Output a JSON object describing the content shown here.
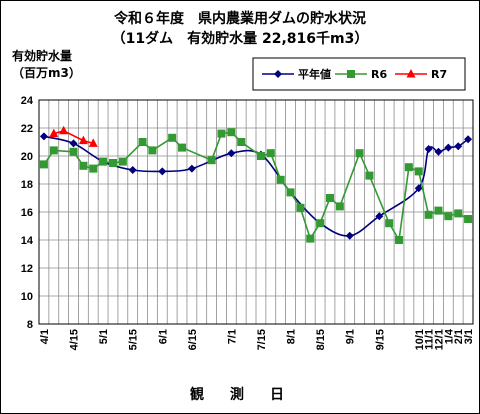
{
  "chart_data": {
    "type": "line",
    "title": "令和６年度　県内農業用ダムの貯水状況",
    "subtitle": "（11ダム　有効貯水量 22,816千m3）",
    "ylabel_line1": "有効貯水量",
    "ylabel_line2": "（百万m3）",
    "xlabel": "観　測　日",
    "ylim": [
      8,
      24
    ],
    "yticks": [
      8,
      10,
      12,
      14,
      16,
      18,
      20,
      22,
      24
    ],
    "grid": true,
    "legend_position": "top-right",
    "x_tick_labels": [
      "4/1",
      "4/15",
      "5/1",
      "5/15",
      "6/1",
      "6/15",
      "7/1",
      "7/15",
      "8/1",
      "8/15",
      "9/1",
      "9/15",
      "10/1",
      "11/1",
      "12/1",
      "1/4",
      "2/1",
      "3/1"
    ],
    "series": [
      {
        "name": "平年値",
        "color": "#00007f",
        "marker": "diamond",
        "points": [
          [
            0,
            21.4
          ],
          [
            3,
            20.9
          ],
          [
            6,
            19.6
          ],
          [
            9,
            19.0
          ],
          [
            12,
            18.9
          ],
          [
            15,
            19.1
          ],
          [
            19,
            20.2
          ],
          [
            22,
            20.1
          ],
          [
            25,
            17.4
          ],
          [
            28,
            15.2
          ],
          [
            31,
            14.3
          ],
          [
            34,
            15.7
          ],
          [
            38,
            17.7
          ],
          [
            39,
            20.5
          ],
          [
            40,
            20.3
          ],
          [
            41,
            20.6
          ],
          [
            42,
            20.7
          ],
          [
            43,
            21.2
          ]
        ]
      },
      {
        "name": "R6",
        "color": "#339933",
        "marker": "square",
        "points": [
          [
            0,
            19.4
          ],
          [
            1,
            20.4
          ],
          [
            3,
            20.3
          ],
          [
            4,
            19.3
          ],
          [
            5,
            19.1
          ],
          [
            6,
            19.6
          ],
          [
            7,
            19.5
          ],
          [
            8,
            19.6
          ],
          [
            10,
            21.0
          ],
          [
            11,
            20.4
          ],
          [
            13,
            21.3
          ],
          [
            14,
            20.6
          ],
          [
            17,
            19.7
          ],
          [
            18,
            21.6
          ],
          [
            19,
            21.7
          ],
          [
            20,
            21.0
          ],
          [
            22,
            20.0
          ],
          [
            23,
            20.2
          ],
          [
            24,
            18.3
          ],
          [
            25,
            17.4
          ],
          [
            26,
            16.3
          ],
          [
            27,
            14.1
          ],
          [
            28,
            15.2
          ],
          [
            29,
            17.0
          ],
          [
            30,
            16.4
          ],
          [
            32,
            20.2
          ],
          [
            33,
            18.6
          ],
          [
            35,
            15.2
          ],
          [
            36,
            14.0
          ],
          [
            37,
            19.2
          ],
          [
            38,
            18.9
          ],
          [
            39,
            15.8
          ],
          [
            40,
            16.1
          ],
          [
            41,
            15.7
          ],
          [
            42,
            15.9
          ],
          [
            43,
            15.5
          ]
        ]
      },
      {
        "name": "R7",
        "color": "#ff0000",
        "marker": "triangle",
        "points": [
          [
            1,
            21.6
          ],
          [
            2,
            21.8
          ],
          [
            4,
            21.1
          ],
          [
            5,
            20.9
          ]
        ]
      }
    ]
  }
}
